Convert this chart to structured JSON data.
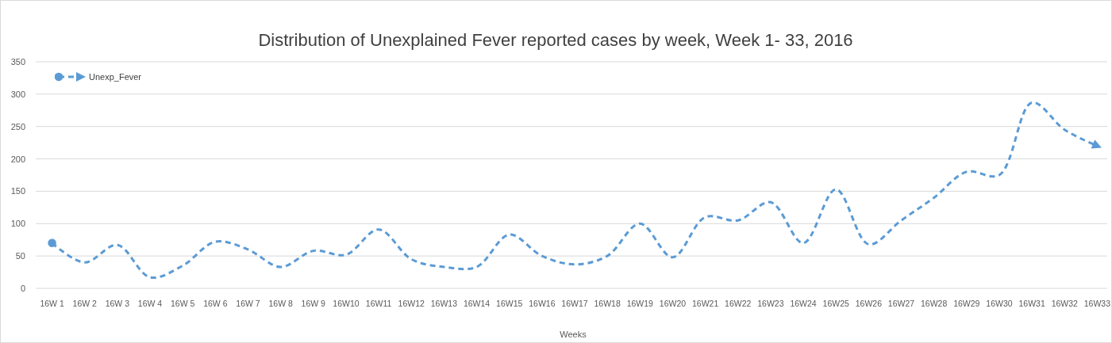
{
  "chart_data": {
    "type": "line",
    "title": "Distribution of  Unexplained Fever reported cases by week, Week 1- 33, 2016",
    "xlabel": "Weeks",
    "categories": [
      "16W 1",
      "16W 2",
      "16W 3",
      "16W 4",
      "16W 5",
      "16W 6",
      "16W 7",
      "16W 8",
      "16W 9",
      "16W10",
      "16W11",
      "16W12",
      "16W13",
      "16W14",
      "16W15",
      "16W16",
      "16W17",
      "16W18",
      "16W19",
      "16W20",
      "16W21",
      "16W22",
      "16W23",
      "16W24",
      "16W25",
      "16W26",
      "16W27",
      "16W28",
      "16W29",
      "16W30",
      "16W31",
      "16W32",
      "16W33"
    ],
    "series": [
      {
        "name": "Unexp_Fever",
        "color": "#5b9bd5",
        "values": [
          70,
          40,
          67,
          17,
          35,
          72,
          60,
          33,
          58,
          52,
          91,
          45,
          33,
          33,
          83,
          50,
          37,
          50,
          100,
          48,
          110,
          105,
          133,
          70,
          153,
          68,
          105,
          140,
          180,
          175,
          287,
          245,
          220
        ]
      }
    ],
    "ylim": [
      0,
      350
    ],
    "yticks": [
      0,
      50,
      100,
      150,
      200,
      250,
      300,
      350
    ],
    "grid": "y",
    "legend": "top left",
    "line_style": "dashed",
    "marker": "none"
  }
}
